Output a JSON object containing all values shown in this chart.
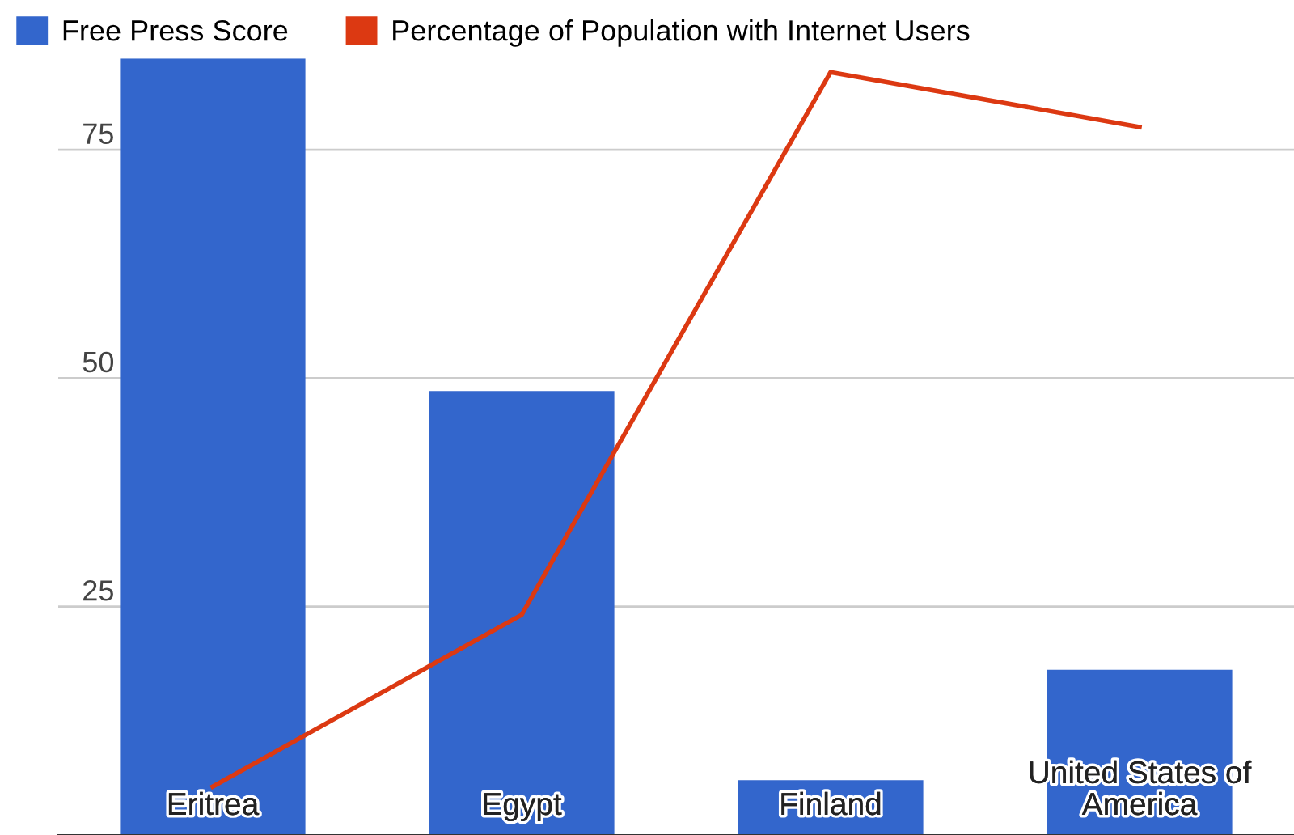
{
  "chart_data": {
    "type": "bar",
    "categories": [
      "Eritrea",
      "Egypt",
      "Finland",
      "United States of\nAmerica"
    ],
    "series": [
      {
        "name": "Free Press Score",
        "color": "#3366cc",
        "values": [
          85,
          48.6,
          6,
          18.1
        ]
      },
      {
        "name": "Percentage of Population with Internet Users",
        "type": "line",
        "color": "#dc3912",
        "values": [
          5.3,
          24.1,
          83.5,
          77.5
        ]
      }
    ],
    "ylim": [
      0,
      85
    ],
    "yticks": [
      25,
      50,
      75
    ],
    "grid": "y",
    "legend": "top left"
  }
}
